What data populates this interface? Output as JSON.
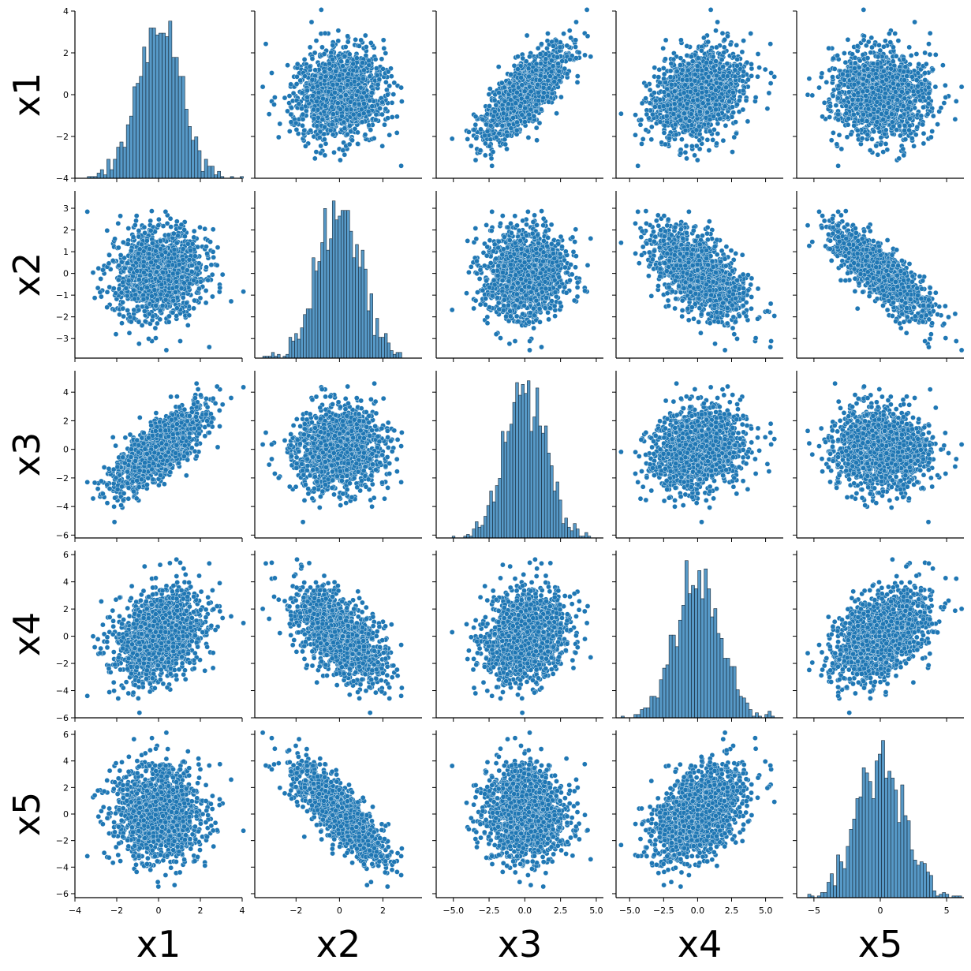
{
  "chart_data": {
    "type": "scatter",
    "variables": [
      "x1",
      "x2",
      "x3",
      "x4",
      "x5"
    ],
    "x_axis_labels": [
      "x1",
      "x2",
      "x3",
      "x4",
      "x5"
    ],
    "y_axis_labels": [
      "x1",
      "x2",
      "x3",
      "x4",
      "x5"
    ],
    "color": "#1f77b4",
    "diagonal": "histogram",
    "off_diagonal": "scatter",
    "grid": false,
    "legend": "none",
    "ranges": {
      "x1": [
        -4.0,
        4.0
      ],
      "x2": [
        -3.9,
        3.8
      ],
      "x3": [
        -6.2,
        5.5
      ],
      "x4": [
        -6.0,
        6.3
      ],
      "x5": [
        -6.3,
        6.3
      ]
    },
    "x_ticks": {
      "x1": [
        {
          "value": -4,
          "label": "−4"
        },
        {
          "value": -2,
          "label": "−2"
        },
        {
          "value": 0,
          "label": "0"
        },
        {
          "value": 2,
          "label": "2"
        },
        {
          "value": 4,
          "label": "4"
        }
      ],
      "x2": [
        {
          "value": -2,
          "label": "−2"
        },
        {
          "value": 0,
          "label": "0"
        },
        {
          "value": 2,
          "label": "2"
        }
      ],
      "x3": [
        {
          "value": -5,
          "label": "−5.0"
        },
        {
          "value": -2.5,
          "label": "−2.5"
        },
        {
          "value": 0,
          "label": "0.0"
        },
        {
          "value": 2.5,
          "label": "2.5"
        },
        {
          "value": 5,
          "label": "5.0"
        }
      ],
      "x4": [
        {
          "value": -5,
          "label": "−5.0"
        },
        {
          "value": -2.5,
          "label": "−2.5"
        },
        {
          "value": 0,
          "label": "0.0"
        },
        {
          "value": 2.5,
          "label": "2.5"
        },
        {
          "value": 5,
          "label": "5.0"
        }
      ],
      "x5": [
        {
          "value": -5,
          "label": "−5"
        },
        {
          "value": 0,
          "label": "0"
        },
        {
          "value": 5,
          "label": "5"
        }
      ]
    },
    "y_ticks": {
      "x1": [
        {
          "value": -4,
          "label": "−4"
        },
        {
          "value": -2,
          "label": "−2"
        },
        {
          "value": 0,
          "label": "0"
        },
        {
          "value": 2,
          "label": "2"
        },
        {
          "value": 4,
          "label": "4"
        }
      ],
      "x2": [
        {
          "value": -3,
          "label": "−3"
        },
        {
          "value": -2,
          "label": "−2"
        },
        {
          "value": -1,
          "label": "−1"
        },
        {
          "value": 0,
          "label": "0"
        },
        {
          "value": 1,
          "label": "1"
        },
        {
          "value": 2,
          "label": "2"
        },
        {
          "value": 3,
          "label": "3"
        }
      ],
      "x3": [
        {
          "value": -6,
          "label": "−6"
        },
        {
          "value": -4,
          "label": "−4"
        },
        {
          "value": -2,
          "label": "−2"
        },
        {
          "value": 0,
          "label": "0"
        },
        {
          "value": 2,
          "label": "2"
        },
        {
          "value": 4,
          "label": "4"
        }
      ],
      "x4": [
        {
          "value": -6,
          "label": "−6"
        },
        {
          "value": -4,
          "label": "−4"
        },
        {
          "value": -2,
          "label": "−2"
        },
        {
          "value": 0,
          "label": "0"
        },
        {
          "value": 2,
          "label": "2"
        },
        {
          "value": 4,
          "label": "4"
        },
        {
          "value": 6,
          "label": "6"
        }
      ],
      "x5": [
        {
          "value": -6,
          "label": "−6"
        },
        {
          "value": -4,
          "label": "−4"
        },
        {
          "value": -2,
          "label": "−2"
        },
        {
          "value": 0,
          "label": "0"
        },
        {
          "value": 2,
          "label": "2"
        },
        {
          "value": 4,
          "label": "4"
        },
        {
          "value": 6,
          "label": "6"
        }
      ]
    },
    "std": {
      "x1": 1.0,
      "x2": 1.0,
      "x3": 1.4,
      "x4": 1.65,
      "x5": 1.8
    },
    "correlations": [
      {
        "pair": [
          "x1",
          "x2"
        ],
        "r": 0.0
      },
      {
        "pair": [
          "x1",
          "x3"
        ],
        "r": 0.72
      },
      {
        "pair": [
          "x1",
          "x4"
        ],
        "r": 0.3
      },
      {
        "pair": [
          "x1",
          "x5"
        ],
        "r": 0.0
      },
      {
        "pair": [
          "x2",
          "x3"
        ],
        "r": 0.0
      },
      {
        "pair": [
          "x2",
          "x4"
        ],
        "r": -0.6
      },
      {
        "pair": [
          "x2",
          "x5"
        ],
        "r": -0.82
      },
      {
        "pair": [
          "x3",
          "x4"
        ],
        "r": 0.22
      },
      {
        "pair": [
          "x3",
          "x5"
        ],
        "r": 0.0
      },
      {
        "pair": [
          "x4",
          "x5"
        ],
        "r": 0.5
      }
    ]
  }
}
